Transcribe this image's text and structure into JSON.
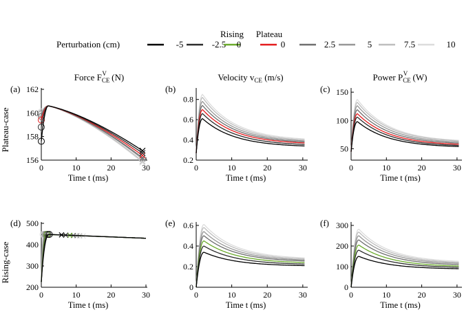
{
  "legend": {
    "perturbation_label": "Perturbation (cm)",
    "rising_label": "Rising",
    "plateau_label": "Plateau",
    "entries": [
      {
        "label": "-5",
        "color": "#000000",
        "group": ""
      },
      {
        "label": "-2.5",
        "color": "#2b2b2b",
        "group": ""
      },
      {
        "label": "0",
        "color": "#6aaa2a",
        "group": "Rising"
      },
      {
        "label": "0",
        "color": "#e41a1c",
        "group": "Plateau"
      },
      {
        "label": "2.5",
        "color": "#6e6e6e",
        "group": ""
      },
      {
        "label": "5",
        "color": "#969696",
        "group": ""
      },
      {
        "label": "7.5",
        "color": "#bdbdbd",
        "group": ""
      },
      {
        "label": "10",
        "color": "#dcdcdc",
        "group": ""
      }
    ]
  },
  "column_titles": [
    {
      "main": "Force F",
      "sub": "CE",
      "sup": "V",
      "unit": " (N)"
    },
    {
      "main": "Velocity v",
      "sub": "CE",
      "sup": "",
      "unit": " (m/s)"
    },
    {
      "main": "Power P",
      "sub": "CE",
      "sup": "V",
      "unit": " (W)"
    }
  ],
  "row_labels": [
    "Plateau-case",
    "Rising-case"
  ],
  "chart_data": [
    {
      "type": "line",
      "panel": "(a)",
      "quantity": "force",
      "xlabel": "Time t (ms)",
      "xlim": [
        0,
        30
      ],
      "ylim": [
        156,
        162
      ],
      "xticks": [
        0,
        10,
        20,
        30
      ],
      "yticks": [
        156,
        158,
        160,
        162
      ],
      "series_colors": [
        "#000000",
        "#2b2b2b",
        "#e41a1c",
        "#6e6e6e",
        "#969696",
        "#bdbdbd",
        "#dcdcdc"
      ],
      "start_values": [
        157.6,
        158.8,
        159.4,
        159.7,
        159.9,
        160.0,
        160.1
      ],
      "peak": 160.6,
      "peak_time": 2,
      "end_values": [
        156.8,
        156.6,
        156.4,
        156.2,
        156.1,
        155.9,
        155.8
      ],
      "end_time": 29
    },
    {
      "type": "line",
      "panel": "(b)",
      "quantity": "velocity",
      "xlabel": "Time t (ms)",
      "xlim": [
        0,
        31
      ],
      "ylim": [
        0.2,
        0.9
      ],
      "xticks": [
        0,
        10,
        20,
        30
      ],
      "yticks": [
        0.2,
        0.4,
        0.6,
        0.8
      ],
      "series_colors": [
        "#000000",
        "#2b2b2b",
        "#e41a1c",
        "#6e6e6e",
        "#969696",
        "#bdbdbd",
        "#dcdcdc"
      ],
      "start_value": 0.27,
      "peak_time": 1.8,
      "peaks": [
        0.61,
        0.66,
        0.7,
        0.74,
        0.78,
        0.82,
        0.85
      ],
      "end_values": [
        0.34,
        0.355,
        0.37,
        0.38,
        0.39,
        0.4,
        0.41
      ]
    },
    {
      "type": "line",
      "panel": "(c)",
      "quantity": "power",
      "xlabel": "Time t (ms)",
      "xlim": [
        0,
        31
      ],
      "ylim": [
        30,
        155
      ],
      "xticks": [
        0,
        10,
        20,
        30
      ],
      "yticks": [
        50,
        100,
        150
      ],
      "series_colors": [
        "#000000",
        "#2b2b2b",
        "#e41a1c",
        "#6e6e6e",
        "#969696",
        "#bdbdbd",
        "#dcdcdc"
      ],
      "start_value": 45,
      "peak_time": 1.8,
      "peaks": [
        98,
        106,
        112,
        119,
        126,
        132,
        137
      ],
      "end_values": [
        54,
        56,
        58,
        60,
        62,
        64,
        65
      ]
    },
    {
      "type": "line",
      "panel": "(d)",
      "quantity": "force",
      "xlabel": "Time t (ms)",
      "xlim": [
        0,
        30
      ],
      "ylim": [
        200,
        500
      ],
      "xticks": [
        0,
        10,
        20,
        30
      ],
      "yticks": [
        200,
        300,
        400,
        500
      ],
      "series_colors": [
        "#000000",
        "#2b2b2b",
        "#6aaa2a",
        "#6e6e6e",
        "#969696",
        "#bdbdbd",
        "#dcdcdc"
      ],
      "start_value": 225,
      "peak": 448,
      "end_value": 430,
      "circle_times": [
        2.3,
        1.9,
        1.6,
        1.4,
        1.1,
        0.8,
        0.5
      ],
      "cross_times": [
        5.8,
        7.0,
        8.2,
        9.2,
        10.2,
        11.0,
        12.0
      ]
    },
    {
      "type": "line",
      "panel": "(e)",
      "quantity": "velocity",
      "xlabel": "Time t (ms)",
      "xlim": [
        0,
        31
      ],
      "ylim": [
        0,
        0.62
      ],
      "xticks": [
        0,
        10,
        20,
        30
      ],
      "yticks": [
        0,
        0.2,
        0.4,
        0.6
      ],
      "series_colors": [
        "#000000",
        "#2b2b2b",
        "#6aaa2a",
        "#6e6e6e",
        "#969696",
        "#bdbdbd",
        "#dcdcdc"
      ],
      "start_value": 0.0,
      "peak_time": 2.2,
      "peaks": [
        0.34,
        0.4,
        0.45,
        0.5,
        0.54,
        0.58,
        0.61
      ],
      "end_values": [
        0.21,
        0.225,
        0.24,
        0.255,
        0.265,
        0.275,
        0.285
      ]
    },
    {
      "type": "line",
      "panel": "(f)",
      "quantity": "power",
      "xlabel": "Time t (ms)",
      "xlim": [
        0,
        31
      ],
      "ylim": [
        0,
        310
      ],
      "xticks": [
        0,
        10,
        20,
        30
      ],
      "yticks": [
        0,
        100,
        200,
        300
      ],
      "series_colors": [
        "#000000",
        "#2b2b2b",
        "#6aaa2a",
        "#6e6e6e",
        "#969696",
        "#bdbdbd",
        "#dcdcdc"
      ],
      "start_value": 0,
      "peak_time": 2.2,
      "peaks": [
        150,
        180,
        205,
        230,
        250,
        268,
        282
      ],
      "end_values": [
        90,
        97,
        103,
        110,
        116,
        121,
        126
      ]
    }
  ]
}
